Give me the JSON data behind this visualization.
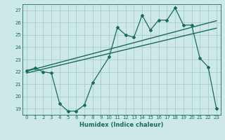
{
  "bg_color": "#cce8e8",
  "grid_color": "#aacccc",
  "line_color": "#1a6b5a",
  "xlabel": "Humidex (Indice chaleur)",
  "xlim": [
    -0.5,
    23.5
  ],
  "ylim": [
    18.5,
    27.5
  ],
  "xticks": [
    0,
    1,
    2,
    3,
    4,
    5,
    6,
    7,
    8,
    9,
    10,
    11,
    12,
    13,
    14,
    15,
    16,
    17,
    18,
    19,
    20,
    21,
    22,
    23
  ],
  "yticks": [
    19,
    20,
    21,
    22,
    23,
    24,
    25,
    26,
    27
  ],
  "line1_x": [
    0,
    1,
    2,
    3,
    4,
    5,
    6,
    7,
    8,
    10,
    11,
    12,
    13,
    14,
    15,
    16,
    17,
    18,
    19,
    20,
    21,
    22,
    23
  ],
  "line1_y": [
    22.1,
    22.3,
    22.0,
    21.9,
    19.4,
    18.8,
    18.8,
    19.3,
    21.1,
    23.2,
    25.6,
    25.0,
    24.8,
    26.6,
    25.4,
    26.2,
    26.2,
    27.2,
    25.8,
    25.8,
    23.1,
    22.4,
    19.0
  ],
  "trend1_x": [
    0,
    23
  ],
  "trend1_y": [
    22.05,
    26.15
  ],
  "trend2_x": [
    0,
    23
  ],
  "trend2_y": [
    21.9,
    25.55
  ],
  "tick_fontsize": 5.0,
  "xlabel_fontsize": 6.0
}
